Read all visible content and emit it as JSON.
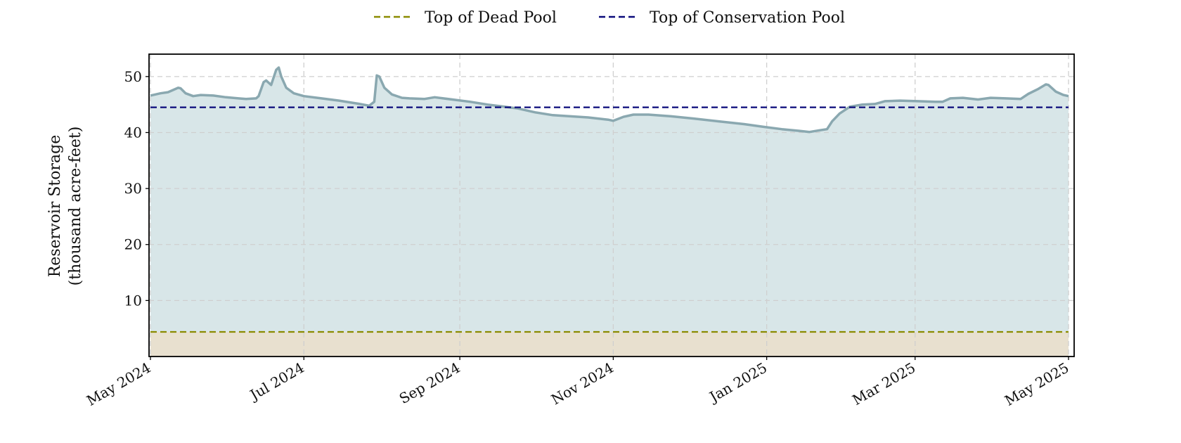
{
  "chart_data": {
    "type": "area",
    "ylabel_lines": [
      "Reservoir Storage",
      "(thousand acre-feet)"
    ],
    "x_ticks": [
      "May 2024",
      "Jul 2024",
      "Sep 2024",
      "Nov 2024",
      "Jan 2025",
      "Mar 2025",
      "May 2025"
    ],
    "x_tick_dates": [
      "2024-05-01",
      "2024-07-01",
      "2024-09-01",
      "2024-11-01",
      "2025-01-01",
      "2025-03-01",
      "2025-05-01"
    ],
    "xlim": [
      "2024-05-01",
      "2025-05-01"
    ],
    "y_ticks": [
      10,
      20,
      30,
      40,
      50
    ],
    "ylim": [
      0,
      54
    ],
    "grid": true,
    "legend_position": "top-center",
    "reference_lines": [
      {
        "name": "Top of Dead Pool",
        "value": 4.4,
        "color": "#8b8b00",
        "fill": "#e8e0cf"
      },
      {
        "name": "Top of Conservation Pool",
        "value": 44.5,
        "color": "#0a0a7a"
      }
    ],
    "series": [
      {
        "color": "#8aa8b0",
        "fill": "#d8e6e8",
        "points": [
          [
            "2024-05-01",
            46.6
          ],
          [
            "2024-05-05",
            47.0
          ],
          [
            "2024-05-08",
            47.2
          ],
          [
            "2024-05-10",
            47.6
          ],
          [
            "2024-05-12",
            48.0
          ],
          [
            "2024-05-13",
            47.9
          ],
          [
            "2024-05-15",
            47.0
          ],
          [
            "2024-05-18",
            46.5
          ],
          [
            "2024-05-21",
            46.7
          ],
          [
            "2024-05-26",
            46.6
          ],
          [
            "2024-05-31",
            46.3
          ],
          [
            "2024-06-05",
            46.1
          ],
          [
            "2024-06-08",
            46.0
          ],
          [
            "2024-06-12",
            46.1
          ],
          [
            "2024-06-13",
            46.5
          ],
          [
            "2024-06-15",
            49.0
          ],
          [
            "2024-06-16",
            49.3
          ],
          [
            "2024-06-18",
            48.5
          ],
          [
            "2024-06-20",
            51.2
          ],
          [
            "2024-06-21",
            51.6
          ],
          [
            "2024-06-22",
            50.0
          ],
          [
            "2024-06-24",
            48.0
          ],
          [
            "2024-06-27",
            47.0
          ],
          [
            "2024-07-01",
            46.5
          ],
          [
            "2024-07-08",
            46.1
          ],
          [
            "2024-07-15",
            45.7
          ],
          [
            "2024-07-22",
            45.2
          ],
          [
            "2024-07-27",
            44.8
          ],
          [
            "2024-07-29",
            45.5
          ],
          [
            "2024-07-30",
            50.2
          ],
          [
            "2024-07-31",
            50.0
          ],
          [
            "2024-08-02",
            48.0
          ],
          [
            "2024-08-05",
            46.8
          ],
          [
            "2024-08-09",
            46.2
          ],
          [
            "2024-08-12",
            46.1
          ],
          [
            "2024-08-18",
            46.0
          ],
          [
            "2024-08-22",
            46.3
          ],
          [
            "2024-08-29",
            45.9
          ],
          [
            "2024-09-05",
            45.5
          ],
          [
            "2024-09-12",
            45.0
          ],
          [
            "2024-09-19",
            44.6
          ],
          [
            "2024-09-24",
            44.3
          ],
          [
            "2024-10-01",
            43.6
          ],
          [
            "2024-10-08",
            43.1
          ],
          [
            "2024-10-15",
            42.9
          ],
          [
            "2024-10-22",
            42.7
          ],
          [
            "2024-10-30",
            42.3
          ],
          [
            "2024-11-01",
            42.1
          ],
          [
            "2024-11-05",
            42.8
          ],
          [
            "2024-11-09",
            43.2
          ],
          [
            "2024-11-15",
            43.2
          ],
          [
            "2024-11-24",
            42.9
          ],
          [
            "2024-12-03",
            42.5
          ],
          [
            "2024-12-13",
            42.0
          ],
          [
            "2024-12-23",
            41.5
          ],
          [
            "2024-12-31",
            41.0
          ],
          [
            "2025-01-07",
            40.6
          ],
          [
            "2025-01-14",
            40.3
          ],
          [
            "2025-01-18",
            40.1
          ],
          [
            "2025-01-22",
            40.4
          ],
          [
            "2025-01-25",
            40.6
          ],
          [
            "2025-01-27",
            42.0
          ],
          [
            "2025-01-30",
            43.4
          ],
          [
            "2025-02-03",
            44.6
          ],
          [
            "2025-02-08",
            45.0
          ],
          [
            "2025-02-13",
            45.1
          ],
          [
            "2025-02-17",
            45.6
          ],
          [
            "2025-02-23",
            45.7
          ],
          [
            "2025-03-02",
            45.6
          ],
          [
            "2025-03-09",
            45.5
          ],
          [
            "2025-03-12",
            45.5
          ],
          [
            "2025-03-15",
            46.1
          ],
          [
            "2025-03-20",
            46.2
          ],
          [
            "2025-03-26",
            45.9
          ],
          [
            "2025-03-31",
            46.2
          ],
          [
            "2025-04-06",
            46.1
          ],
          [
            "2025-04-12",
            46.0
          ],
          [
            "2025-04-15",
            46.9
          ],
          [
            "2025-04-19",
            47.8
          ],
          [
            "2025-04-22",
            48.6
          ],
          [
            "2025-04-23",
            48.5
          ],
          [
            "2025-04-26",
            47.3
          ],
          [
            "2025-04-29",
            46.7
          ],
          [
            "2025-05-01",
            46.5
          ]
        ]
      }
    ]
  }
}
